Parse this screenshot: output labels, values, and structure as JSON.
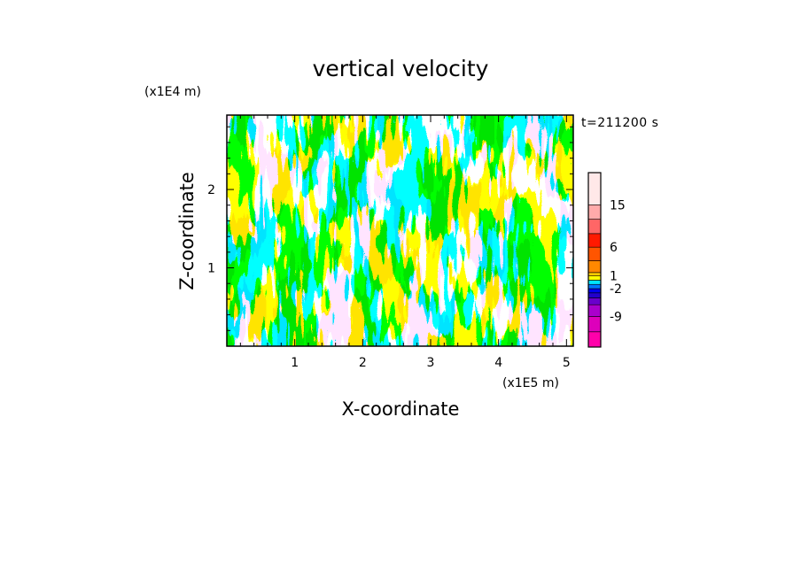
{
  "chart_data": {
    "type": "heatmap",
    "title": "vertical velocity",
    "xlabel": "X-coordinate",
    "ylabel": "Z-coordinate",
    "x_unit": "(x1E5 m)",
    "y_unit": "(x1E4 m)",
    "time_label": "t=211200 s",
    "xlim": [
      0,
      5.1
    ],
    "ylim": [
      0,
      2.95
    ],
    "x_ticks": [
      "1",
      "2",
      "3",
      "4",
      "5"
    ],
    "x_tick_values": [
      1,
      2,
      3,
      4,
      5
    ],
    "y_ticks": [
      "1",
      "2"
    ],
    "y_tick_values": [
      1,
      2
    ],
    "field_colors": {
      "positive": "#ffff00",
      "negative": "#00e5ff"
    },
    "colorbar": {
      "levels": [
        {
          "color": "#ff00aa"
        },
        {
          "color": "#dd00bb"
        },
        {
          "color": "#aa00cc"
        },
        {
          "color": "#6a00cc"
        },
        {
          "color": "#2200cc"
        },
        {
          "color": "#0000ee"
        },
        {
          "color": "#0077ff"
        },
        {
          "color": "#00e5ff"
        },
        {
          "color": "#ffff00"
        },
        {
          "color": "#ffcc00"
        },
        {
          "color": "#ff8800"
        },
        {
          "color": "#ff5500"
        },
        {
          "color": "#ff1a00"
        },
        {
          "color": "#ff6666"
        },
        {
          "color": "#ffaaaa"
        },
        {
          "color": "#ffe8e8"
        }
      ],
      "tick_labels": [
        "-9",
        "-2",
        "1",
        "6",
        "15"
      ]
    }
  }
}
